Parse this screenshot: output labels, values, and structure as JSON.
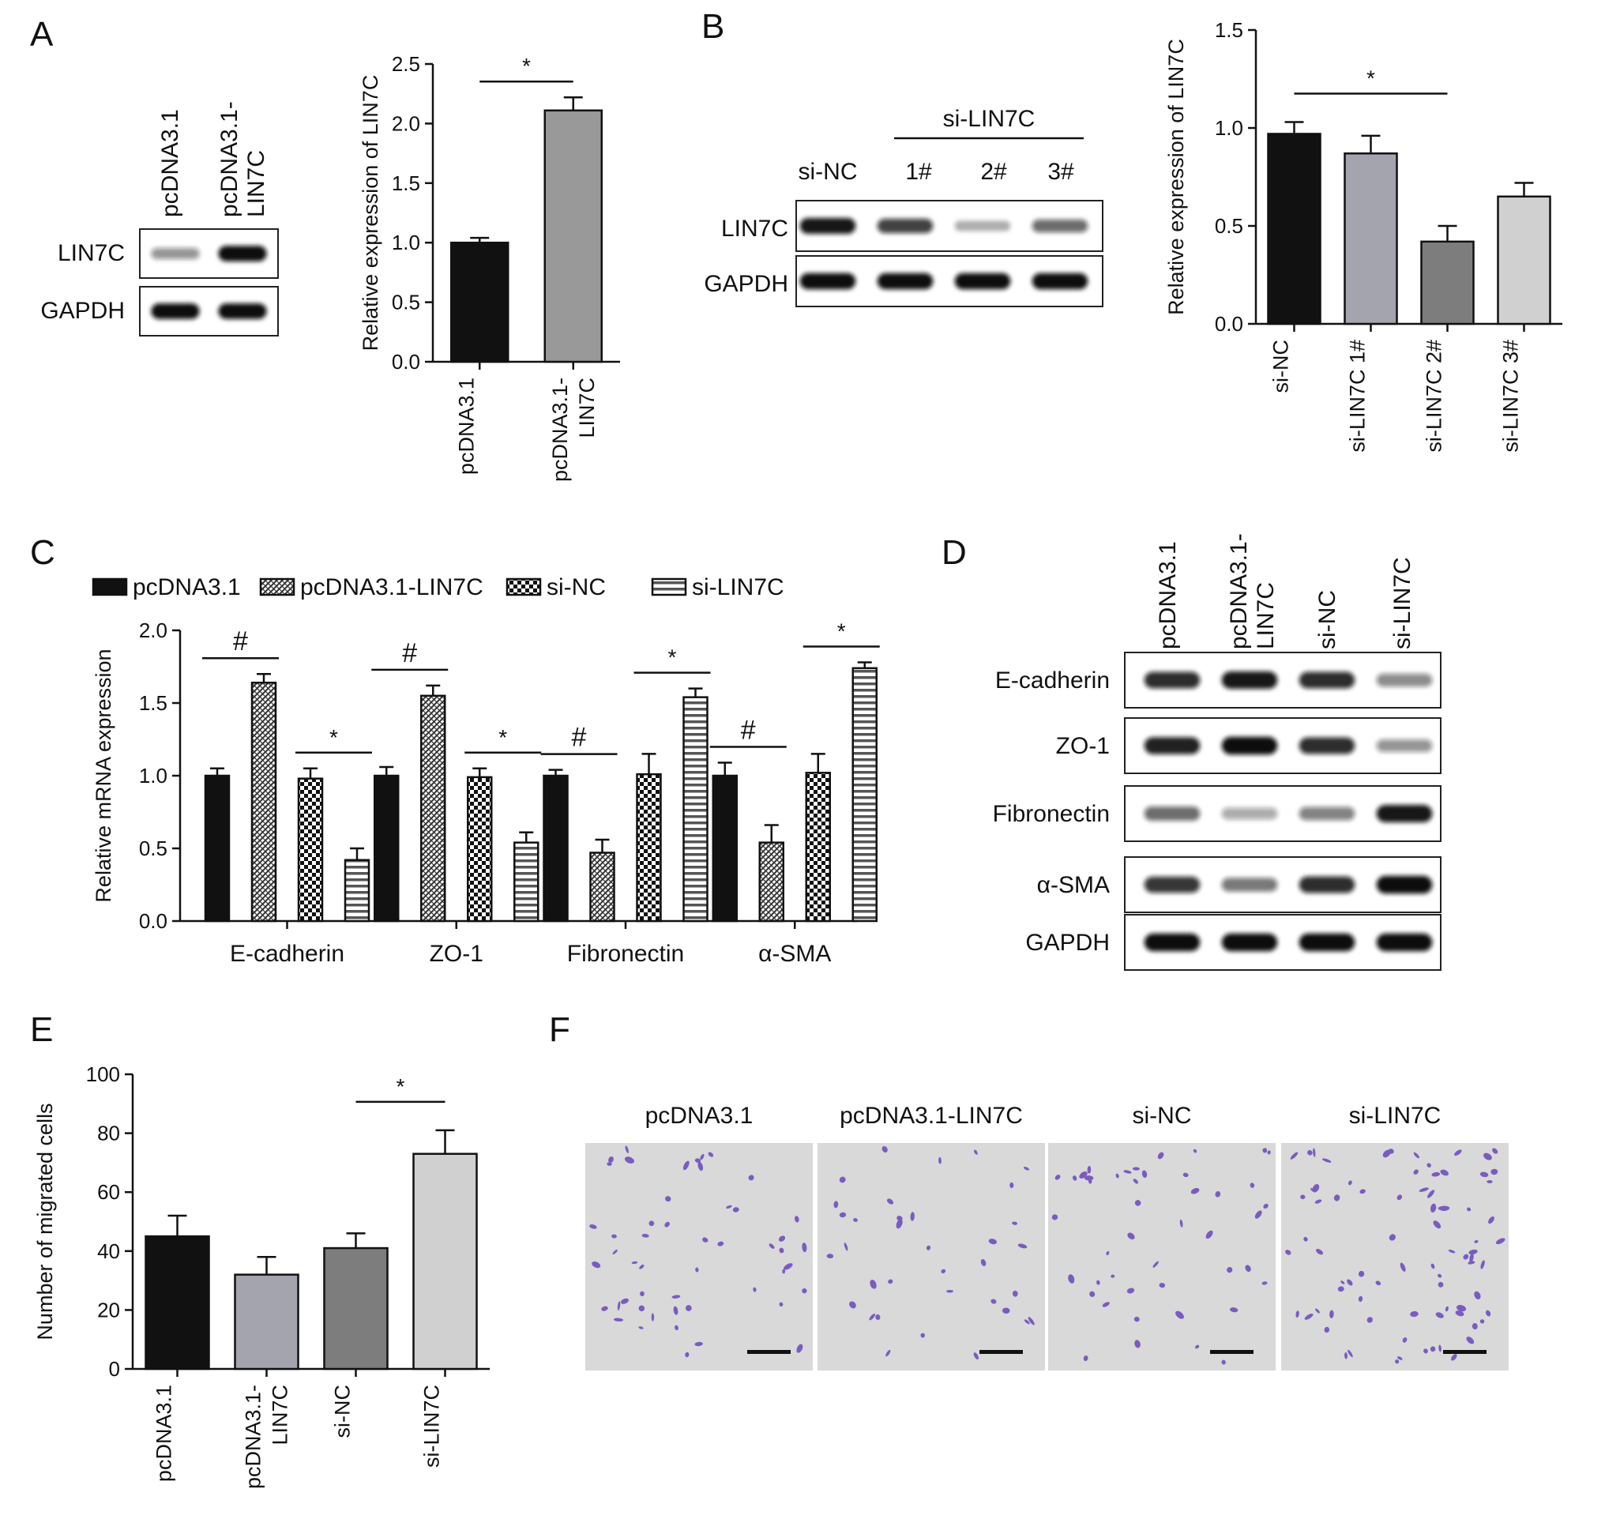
{
  "colors": {
    "black": "#111111",
    "gray": "#999999",
    "light_gray": "#d0d0d0",
    "mid_gray": "#7d7d7d",
    "lavender_gray": "#a4a4ae",
    "stain": "#7a5cc0",
    "membrane": "#d9d9d9"
  },
  "panels": {
    "A": {
      "label": "A",
      "blot": {
        "lanes": [
          "pcDNA3.1",
          "pcDNA3.1-\nLIN7C"
        ],
        "rows": [
          "LIN7C",
          "GAPDH"
        ],
        "band_intensity": {
          "LIN7C": [
            0.35,
            1.0
          ],
          "GAPDH": [
            1.0,
            1.0
          ]
        }
      }
    },
    "B": {
      "label": "B",
      "blot": {
        "group_label": "si-LIN7C",
        "lanes": [
          "si-NC",
          "1#",
          "2#",
          "3#"
        ],
        "rows": [
          "LIN7C",
          "GAPDH"
        ],
        "band_intensity": {
          "LIN7C": [
            0.95,
            0.75,
            0.2,
            0.55
          ],
          "GAPDH": [
            1.0,
            1.0,
            1.0,
            1.0
          ]
        }
      }
    },
    "C": {
      "label": "C"
    },
    "D": {
      "label": "D",
      "blot": {
        "lanes": [
          "pcDNA3.1",
          "pcDNA3.1-\nLIN7C",
          "si-NC",
          "si-LIN7C"
        ],
        "rows": [
          "E-cadherin",
          "ZO-1",
          "Fibronectin",
          "α-SMA",
          "GAPDH"
        ],
        "band_intensity": {
          "E-cadherin": [
            0.85,
            0.95,
            0.85,
            0.4
          ],
          "ZO-1": [
            0.9,
            1.0,
            0.85,
            0.35
          ],
          "Fibronectin": [
            0.55,
            0.25,
            0.45,
            0.95
          ],
          "α-SMA": [
            0.8,
            0.5,
            0.85,
            1.0
          ],
          "GAPDH": [
            1.0,
            1.0,
            1.0,
            1.0
          ]
        }
      }
    },
    "E": {
      "label": "E"
    },
    "F": {
      "label": "F",
      "images": [
        "pcDNA3.1",
        "pcDNA3.1-LIN7C",
        "si-NC",
        "si-LIN7C"
      ],
      "cell_density": [
        0.45,
        0.32,
        0.41,
        0.73
      ]
    }
  },
  "chart_data": [
    {
      "id": "A",
      "type": "bar",
      "categories": [
        "pcDNA3.1",
        "pcDNA3.1-\nLIN7C"
      ],
      "values": [
        1.0,
        2.11
      ],
      "errors": [
        0.04,
        0.11
      ],
      "ylabel": "Relative expression of LIN7C",
      "ylim": [
        0,
        2.5
      ],
      "yticks": [
        "0.0",
        "0.5",
        "1.0",
        "1.5",
        "2.0",
        "2.5"
      ],
      "significance": [
        {
          "from": 0,
          "to": 1,
          "mark": "*"
        }
      ],
      "bar_colors": [
        "#111111",
        "#999999"
      ]
    },
    {
      "id": "B",
      "type": "bar",
      "categories": [
        "si-NC",
        "si-LIN7C 1#",
        "si-LIN7C 2#",
        "si-LIN7C 3#"
      ],
      "values": [
        0.97,
        0.87,
        0.42,
        0.65
      ],
      "errors": [
        0.06,
        0.09,
        0.08,
        0.07
      ],
      "ylabel": "Relative expression of LIN7C",
      "ylim": [
        0,
        1.5
      ],
      "yticks": [
        "0.0",
        "0.5",
        "1.0",
        "1.5"
      ],
      "significance": [
        {
          "from": 0,
          "to": 2,
          "mark": "*"
        }
      ],
      "bar_colors": [
        "#111111",
        "#a4a4ae",
        "#7d7d7d",
        "#d0d0d0"
      ]
    },
    {
      "id": "C",
      "type": "bar",
      "categories": [
        "E-cadherin",
        "ZO-1",
        "Fibronectin",
        "α-SMA"
      ],
      "series": [
        {
          "name": "pcDNA3.1",
          "values": [
            1.0,
            1.0,
            1.0,
            1.0
          ],
          "errors": [
            0.05,
            0.06,
            0.04,
            0.09
          ],
          "pattern": "solid"
        },
        {
          "name": "pcDNA3.1-LIN7C",
          "values": [
            1.64,
            1.55,
            0.47,
            0.54
          ],
          "errors": [
            0.06,
            0.07,
            0.09,
            0.12
          ],
          "pattern": "diag"
        },
        {
          "name": "si-NC",
          "values": [
            0.98,
            0.99,
            1.01,
            1.02
          ],
          "errors": [
            0.07,
            0.06,
            0.14,
            0.13
          ],
          "pattern": "checker"
        },
        {
          "name": "si-LIN7C",
          "values": [
            0.42,
            0.54,
            1.54,
            1.74
          ],
          "errors": [
            0.08,
            0.07,
            0.06,
            0.04
          ],
          "pattern": "hstripe"
        }
      ],
      "ylabel": "Relative mRNA expression",
      "ylim": [
        0,
        2.0
      ],
      "yticks": [
        "0.0",
        "0.5",
        "1.0",
        "1.5",
        "2.0"
      ],
      "significance": [
        {
          "group": 0,
          "from": 0,
          "to": 1,
          "mark": "#"
        },
        {
          "group": 0,
          "from": 2,
          "to": 3,
          "mark": "*"
        },
        {
          "group": 1,
          "from": 0,
          "to": 1,
          "mark": "#"
        },
        {
          "group": 1,
          "from": 2,
          "to": 3,
          "mark": "*"
        },
        {
          "group": 2,
          "from": 0,
          "to": 1,
          "mark": "#"
        },
        {
          "group": 2,
          "from": 2,
          "to": 3,
          "mark": "*"
        },
        {
          "group": 3,
          "from": 0,
          "to": 1,
          "mark": "#"
        },
        {
          "group": 3,
          "from": 2,
          "to": 3,
          "mark": "*"
        }
      ],
      "legend": [
        "pcDNA3.1",
        "pcDNA3.1-LIN7C",
        "si-NC",
        "si-LIN7C"
      ],
      "legend_position": "top"
    },
    {
      "id": "E",
      "type": "bar",
      "categories": [
        "pcDNA3.1",
        "pcDNA3.1-\nLIN7C",
        "si-NC",
        "si-LIN7C"
      ],
      "values": [
        45,
        32,
        41,
        73
      ],
      "errors": [
        7,
        6,
        5,
        8
      ],
      "ylabel": "Number of migrated cells",
      "ylim": [
        0,
        100
      ],
      "yticks": [
        "0",
        "20",
        "40",
        "60",
        "80",
        "100"
      ],
      "significance": [
        {
          "from": 2,
          "to": 3,
          "mark": "*"
        }
      ],
      "bar_colors": [
        "#111111",
        "#a4a4ae",
        "#7d7d7d",
        "#d0d0d0"
      ]
    }
  ]
}
